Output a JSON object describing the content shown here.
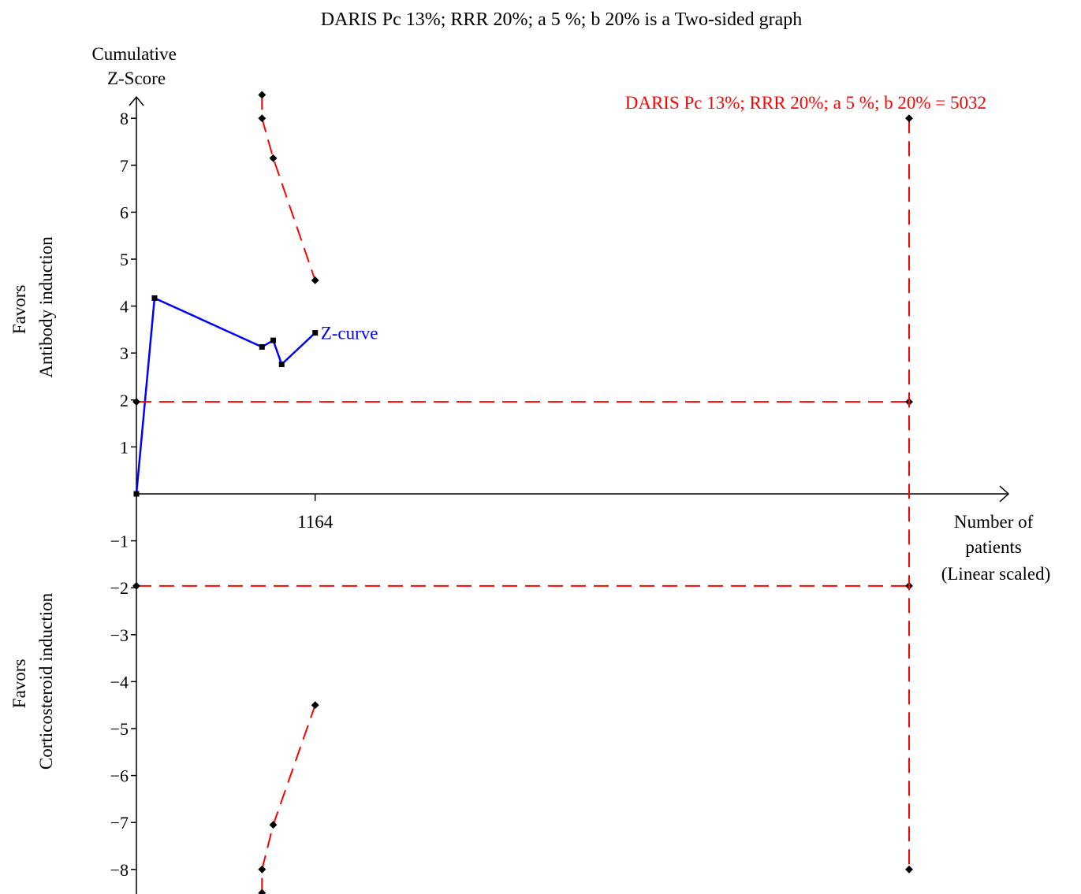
{
  "chart_data": {
    "type": "line",
    "title": "DARIS Pc 13%; RRR 20%; a 5 %; b 20% is a Two-sided graph",
    "ylabel_lines": [
      "Cumulative",
      "Z-Score"
    ],
    "xlabel_lines": [
      "Number of",
      "patients",
      "(Linear scaled)"
    ],
    "upper_favors_lines": [
      "Favors",
      "Antibody induction"
    ],
    "lower_favors_lines": [
      "Favors",
      "Corticosteroid induction"
    ],
    "ylim": [
      -8,
      8
    ],
    "y_ticks": [
      8,
      7,
      6,
      5,
      4,
      3,
      2,
      1,
      -1,
      -2,
      -3,
      -4,
      -5,
      -6,
      -7,
      -8
    ],
    "y_tick_labels": [
      "8",
      "7",
      "6",
      "5",
      "4",
      "3",
      "2",
      "1",
      "−1",
      "−2",
      "−3",
      "−4",
      "−5",
      "−6",
      "−7",
      "−8"
    ],
    "xlim": [
      0,
      5032
    ],
    "x_ticks": [
      1164
    ],
    "x_tick_labels": [
      "1164"
    ],
    "grid": false,
    "series": [
      {
        "name": "Z-curve",
        "label": "Z-curve",
        "color": "#0000ff",
        "style": "solid",
        "x": [
          0,
          118,
          818,
          891,
          946,
          1164
        ],
        "y": [
          0,
          4.17,
          3.13,
          3.27,
          2.76,
          3.43
        ]
      },
      {
        "role": "upper-monitoring-boundary",
        "color": "#ff0000",
        "style": "dashed",
        "x": [
          818,
          818,
          891,
          1164
        ],
        "y": [
          8.5,
          8.0,
          7.15,
          4.55
        ]
      },
      {
        "role": "lower-monitoring-boundary",
        "color": "#ff0000",
        "style": "dashed",
        "x": [
          818,
          818,
          891,
          1164
        ],
        "y": [
          -8.5,
          -8.0,
          -7.05,
          -4.5
        ]
      },
      {
        "role": "upper-conventional-boundary",
        "color": "#ff0000",
        "style": "dashed",
        "x": [
          0,
          5032
        ],
        "y": [
          1.96,
          1.96
        ]
      },
      {
        "role": "lower-conventional-boundary",
        "color": "#ff0000",
        "style": "dashed",
        "x": [
          0,
          5032
        ],
        "y": [
          -1.96,
          -1.96
        ]
      },
      {
        "role": "required-information-size",
        "color": "#ff0000",
        "style": "dashed",
        "x": [
          5032,
          5032
        ],
        "y": [
          8,
          -8
        ]
      }
    ],
    "ris_label": "DARIS Pc 13%; RRR 20%; a 5 %; b 20% = 5032",
    "colors": {
      "axis": "#000000",
      "z_curve": "#0000ff",
      "boundary": "#ff0000"
    }
  }
}
